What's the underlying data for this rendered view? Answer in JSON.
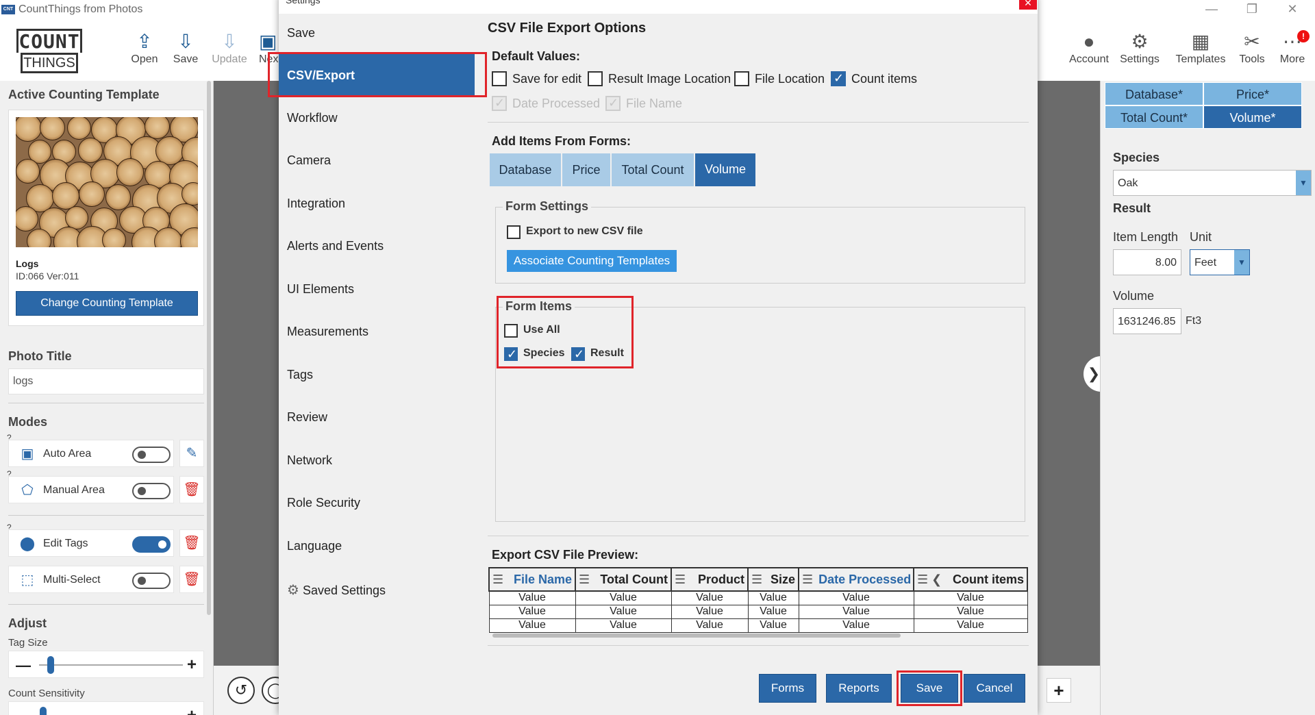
{
  "window": {
    "title": "CountThings from Photos",
    "app_icon_text": "CNT",
    "minimize": "—",
    "maximize": "❐",
    "close": "✕"
  },
  "toolbar": {
    "logo_top": "COUNT",
    "logo_bottom": "THINGS",
    "left_buttons": [
      {
        "label": "Open",
        "icon": "open-icon"
      },
      {
        "label": "Save",
        "icon": "save-icon"
      },
      {
        "label": "Update",
        "icon": "update-icon",
        "disabled": true
      },
      {
        "label": "Nex",
        "icon": "next-icon"
      }
    ],
    "right_buttons": [
      {
        "label": "Account",
        "icon": "account-icon"
      },
      {
        "label": "Settings",
        "icon": "gear-icon"
      },
      {
        "label": "Templates",
        "icon": "templates-icon"
      },
      {
        "label": "Tools",
        "icon": "tools-icon"
      },
      {
        "label": "More",
        "icon": "more-icon",
        "badge": "!"
      }
    ]
  },
  "left_panel": {
    "active_template_heading": "Active Counting Template",
    "template_name": "Logs",
    "template_id": "ID:066 Ver:011",
    "change_template_button": "Change Counting Template",
    "photo_title_heading": "Photo Title",
    "photo_title_value": "logs",
    "modes_heading": "Modes",
    "modes": [
      {
        "label": "Auto Area",
        "on": false,
        "action_icon": "edit-icon",
        "help": "?"
      },
      {
        "label": "Manual Area",
        "on": false,
        "action_icon": "trash-icon",
        "help": "?"
      },
      {
        "label": "Edit Tags",
        "on": true,
        "action_icon": "trash-icon",
        "help": "?"
      },
      {
        "label": "Multi-Select",
        "on": false,
        "action_icon": "trash-icon"
      }
    ],
    "adjust_heading": "Adjust",
    "tag_size_label": "Tag Size",
    "tag_size_level": 0.08,
    "count_sensitivity_label": "Count Sensitivity",
    "count_sensitivity_level": 0.03
  },
  "settings": {
    "window_title": "Settings",
    "close": "✕",
    "nav": [
      "Save",
      "CSV/Export",
      "Workflow",
      "Camera",
      "Integration",
      "Alerts and Events",
      "UI Elements",
      "Measurements",
      "Tags",
      "Review",
      "Network",
      "Role Security",
      "Language"
    ],
    "active_nav": "CSV/Export",
    "saved_settings": "Saved Settings",
    "title": "CSV File Export Options",
    "default_values_heading": "Default Values:",
    "default_values": [
      {
        "label": "Save for edit",
        "checked": false
      },
      {
        "label": "Result Image Location",
        "checked": false
      },
      {
        "label": "File Location",
        "checked": false
      },
      {
        "label": "Count items",
        "checked": true
      }
    ],
    "default_values_disabled": [
      {
        "label": "Date Processed",
        "checked": true
      },
      {
        "label": "File Name",
        "checked": true
      }
    ],
    "add_items_heading": "Add Items From Forms:",
    "form_tabs": [
      "Database",
      "Price",
      "Total Count",
      "Volume"
    ],
    "active_form_tab": "Volume",
    "form_settings_heading": "Form Settings",
    "export_new_csv_label": "Export to new CSV file",
    "associate_button": "Associate Counting Templates",
    "form_items_heading": "Form Items",
    "use_all_label": "Use All",
    "form_items": [
      {
        "label": "Species",
        "checked": true
      },
      {
        "label": "Result",
        "checked": true
      }
    ],
    "preview_heading": "Export CSV File Preview:",
    "preview_columns": [
      "File Name",
      "Total Count",
      "Product",
      "Size",
      "Date Processed",
      "Count items"
    ],
    "preview_rows": [
      [
        "Value",
        "Value",
        "Value",
        "Value",
        "Value",
        "Value"
      ],
      [
        "Value",
        "Value",
        "Value",
        "Value",
        "Value",
        "Value"
      ],
      [
        "Value",
        "Value",
        "Value",
        "Value",
        "Value",
        "Value"
      ]
    ],
    "footer_buttons": [
      "Forms",
      "Reports",
      "Save",
      "Cancel"
    ]
  },
  "right_panel": {
    "tabs": [
      {
        "label": "Database*",
        "active": false
      },
      {
        "label": "Price*",
        "active": false
      },
      {
        "label": "Total Count*",
        "active": false
      },
      {
        "label": "Volume*",
        "active": true
      }
    ],
    "species_label": "Species",
    "species_value": "Oak",
    "result_label": "Result",
    "item_length_label": "Item Length",
    "unit_label": "Unit",
    "item_length_value": "8.00",
    "unit_value": "Feet",
    "volume_label": "Volume",
    "volume_value": "1631246.85",
    "volume_unit": "Ft3"
  },
  "colors": {
    "accent": "#2b68a8",
    "accent_light": "#7ab4df",
    "highlight_red": "#e0242a",
    "assoc_button": "#3694e0"
  }
}
